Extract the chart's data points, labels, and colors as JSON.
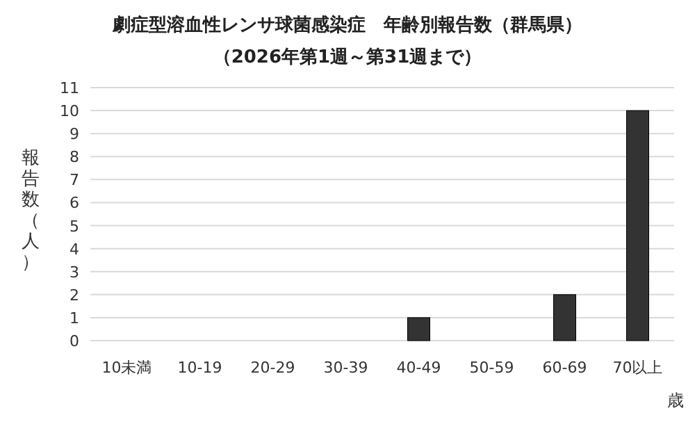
{
  "chart_data": {
    "type": "bar",
    "title": "劇症型溶血性レンサ球菌感染症　年齢別報告数（群馬県）",
    "subtitle": "（2026年第1週～第31週まで）",
    "xlabel": "歳",
    "ylabel": "報告数（人）",
    "categories": [
      "10未満",
      "10-19",
      "20-29",
      "30-39",
      "40-49",
      "50-59",
      "60-69",
      "70以上"
    ],
    "values": [
      0,
      0,
      0,
      0,
      1,
      0,
      2,
      10
    ],
    "color": "#333333",
    "ylim": [
      0,
      11
    ],
    "yticks": [
      0,
      1,
      2,
      3,
      4,
      5,
      6,
      7,
      8,
      9,
      10,
      11
    ],
    "grid": "y"
  }
}
